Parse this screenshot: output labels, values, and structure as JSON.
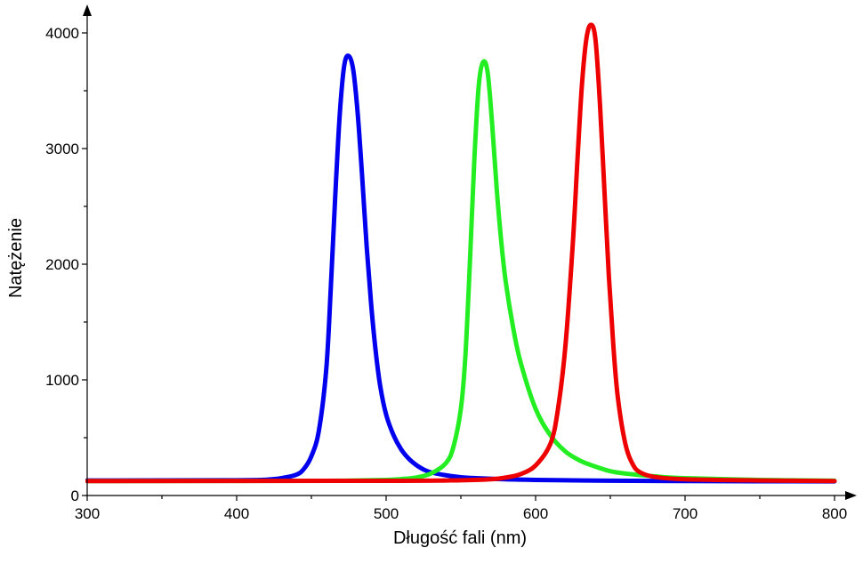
{
  "chart_data": {
    "type": "line",
    "xlabel": "Długość fali (nm)",
    "ylabel": "Natężenie",
    "xlim": [
      300,
      800
    ],
    "ylim": [
      0,
      4150
    ],
    "x_ticks": [
      300,
      400,
      500,
      600,
      700,
      800
    ],
    "x_tick_labels": [
      "300",
      "400",
      "500",
      "600",
      "700",
      "800"
    ],
    "x_minor_ticks": [
      350,
      450,
      550,
      650,
      750
    ],
    "y_ticks": [
      0,
      1000,
      2000,
      3000,
      4000
    ],
    "y_tick_labels": [
      "0",
      "1000",
      "2000",
      "3000",
      "4000"
    ],
    "y_minor_ticks": [
      500,
      1500,
      2500,
      3500
    ],
    "grid": false,
    "legend": "none",
    "series": [
      {
        "color": "#0000ee",
        "x": [
          300,
          400,
          420,
          430,
          440,
          445,
          450,
          455,
          460,
          463,
          466,
          469,
          472,
          475,
          478,
          481,
          484,
          487,
          490,
          493,
          496,
          500,
          505,
          510,
          515,
          520,
          525,
          530,
          540,
          550,
          560,
          580,
          600,
          650,
          700,
          800
        ],
        "y": [
          130,
          132,
          137,
          150,
          180,
          230,
          340,
          560,
          1100,
          1800,
          2600,
          3300,
          3720,
          3800,
          3680,
          3300,
          2750,
          2150,
          1650,
          1250,
          950,
          700,
          520,
          400,
          320,
          265,
          225,
          200,
          175,
          158,
          150,
          140,
          135,
          128,
          125,
          122
        ]
      },
      {
        "color": "#22ee22",
        "x": [
          300,
          450,
          480,
          500,
          510,
          520,
          530,
          540,
          545,
          550,
          553,
          556,
          559,
          562,
          565,
          568,
          571,
          574,
          577,
          580,
          585,
          590,
          600,
          610,
          620,
          630,
          640,
          650,
          660,
          680,
          700,
          750,
          800
        ],
        "y": [
          125,
          127,
          130,
          135,
          142,
          155,
          190,
          280,
          420,
          750,
          1200,
          2000,
          2900,
          3550,
          3750,
          3650,
          3200,
          2650,
          2200,
          1850,
          1450,
          1150,
          750,
          520,
          380,
          300,
          250,
          210,
          190,
          165,
          150,
          135,
          128
        ]
      },
      {
        "color": "#ee0000",
        "x": [
          300,
          500,
          550,
          570,
          580,
          590,
          600,
          610,
          615,
          620,
          625,
          628,
          631,
          634,
          637,
          640,
          643,
          646,
          649,
          652,
          655,
          660,
          665,
          670,
          680,
          700,
          750,
          800
        ],
        "y": [
          125,
          127,
          132,
          140,
          155,
          185,
          260,
          450,
          750,
          1300,
          2200,
          2900,
          3550,
          3950,
          4070,
          3950,
          3400,
          2650,
          1900,
          1300,
          850,
          450,
          270,
          200,
          160,
          140,
          130,
          125
        ]
      }
    ]
  }
}
